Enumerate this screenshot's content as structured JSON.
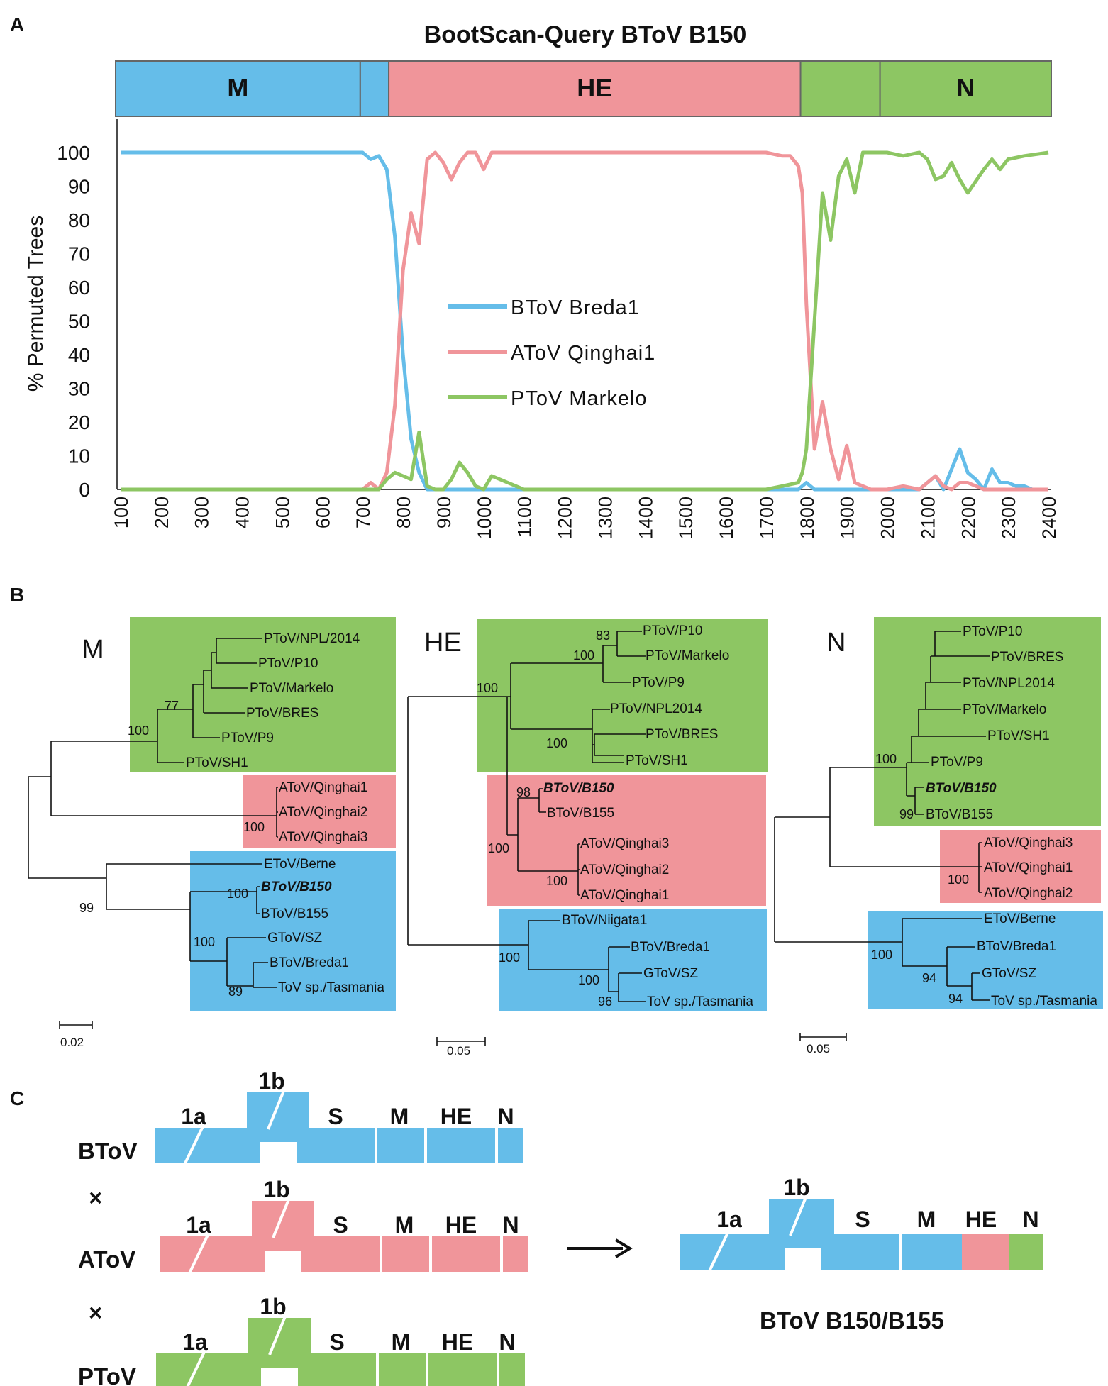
{
  "figure": {
    "panel_a_letter": "A",
    "panel_b_letter": "B",
    "panel_c_letter": "C"
  },
  "chart_data": {
    "type": "line",
    "title": "BootScan-Query BToV B150",
    "ylabel": "% Permuted Trees",
    "xlabel": "",
    "xlim": [
      100,
      2400
    ],
    "ylim": [
      0,
      100
    ],
    "xticks": [
      "100",
      "200",
      "300",
      "400",
      "500",
      "600",
      "700",
      "800",
      "900",
      "1000",
      "1100",
      "1200",
      "1300",
      "1400",
      "1500",
      "1600",
      "1700",
      "1800",
      "1900",
      "2000",
      "2100",
      "2200",
      "2300",
      "2400"
    ],
    "yticks": [
      "0",
      "10",
      "20",
      "30",
      "40",
      "50",
      "60",
      "70",
      "80",
      "90",
      "100"
    ],
    "regions": [
      {
        "label": "M",
        "start": 100,
        "end": 700,
        "color": "#65bde9"
      },
      {
        "label": "",
        "start": 700,
        "end": 770,
        "color": "#65bde9"
      },
      {
        "label": "HE",
        "start": 770,
        "end": 1780,
        "color": "#f0959a"
      },
      {
        "label": "",
        "start": 1780,
        "end": 1975,
        "color": "#8dc663"
      },
      {
        "label": "N",
        "start": 1975,
        "end": 2395,
        "color": "#8dc663"
      }
    ],
    "series": [
      {
        "name": "BToV Breda1",
        "color": "#65bde9",
        "x": [
          100,
          200,
          300,
          400,
          500,
          600,
          700,
          720,
          740,
          760,
          780,
          800,
          820,
          840,
          860,
          880,
          900,
          1000,
          1500,
          1700,
          1760,
          1780,
          1800,
          1820,
          1900,
          2000,
          2080,
          2100,
          2120,
          2140,
          2160,
          2180,
          2200,
          2220,
          2240,
          2260,
          2280,
          2300,
          2320,
          2340,
          2360,
          2400
        ],
        "y": [
          100,
          100,
          100,
          100,
          100,
          100,
          100,
          98,
          99,
          95,
          75,
          40,
          15,
          5,
          0,
          0,
          0,
          0,
          0,
          0,
          0,
          0,
          2,
          0,
          0,
          0,
          0,
          2,
          4,
          0,
          6,
          12,
          5,
          3,
          0,
          6,
          2,
          2,
          1,
          1,
          0,
          0
        ]
      },
      {
        "name": "AToV Qinghai1",
        "color": "#f0959a",
        "x": [
          100,
          600,
          700,
          720,
          740,
          760,
          780,
          790,
          800,
          820,
          840,
          860,
          880,
          900,
          920,
          940,
          960,
          980,
          1000,
          1020,
          1100,
          1500,
          1700,
          1740,
          1760,
          1780,
          1790,
          1800,
          1820,
          1840,
          1860,
          1880,
          1900,
          1920,
          1960,
          2000,
          2040,
          2080,
          2100,
          2120,
          2140,
          2160,
          2180,
          2200,
          2240,
          2400
        ],
        "y": [
          0,
          0,
          0,
          2,
          0,
          5,
          25,
          45,
          65,
          82,
          73,
          98,
          100,
          97,
          92,
          97,
          100,
          100,
          95,
          100,
          100,
          100,
          100,
          99,
          99,
          96,
          88,
          55,
          12,
          26,
          12,
          3,
          13,
          2,
          0,
          0,
          1,
          0,
          2,
          4,
          1,
          0,
          2,
          2,
          0,
          0
        ]
      },
      {
        "name": "PToV Markelo",
        "color": "#8dc663",
        "x": [
          100,
          600,
          700,
          720,
          740,
          760,
          780,
          800,
          820,
          840,
          860,
          880,
          900,
          920,
          940,
          960,
          980,
          1000,
          1020,
          1100,
          1500,
          1700,
          1740,
          1780,
          1790,
          1800,
          1820,
          1840,
          1860,
          1880,
          1900,
          1920,
          1940,
          1960,
          2000,
          2040,
          2080,
          2100,
          2120,
          2140,
          2160,
          2180,
          2200,
          2240,
          2260,
          2280,
          2300,
          2340,
          2400
        ],
        "y": [
          0,
          0,
          0,
          0,
          0,
          3,
          5,
          4,
          3,
          17,
          1,
          0,
          0,
          3,
          8,
          5,
          1,
          0,
          4,
          0,
          0,
          0,
          1,
          2,
          5,
          12,
          50,
          88,
          74,
          93,
          98,
          88,
          100,
          100,
          100,
          99,
          100,
          98,
          92,
          93,
          97,
          92,
          88,
          95,
          98,
          95,
          98,
          99,
          100
        ]
      }
    ]
  },
  "trees": {
    "m": {
      "title": "M",
      "leaves": [
        "PToV/NPL/2014",
        "PToV/P10",
        "PToV/Markelo",
        "PToV/BRES",
        "PToV/P9",
        "PToV/SH1",
        "AToV/Qinghai1",
        "AToV/Qinghai2",
        "AToV/Qinghai3",
        "EToV/Berne",
        "BToV/B150",
        "BToV/B155",
        "GToV/SZ",
        "BToV/Breda1",
        "ToV sp./Tasmania"
      ],
      "bootstrap": [
        "77",
        "100",
        "100",
        "99",
        "100",
        "100",
        "89"
      ],
      "scale": "0.02"
    },
    "he": {
      "title": "HE",
      "leaves": [
        "PToV/P10",
        "PToV/Markelo",
        "PToV/P9",
        "PToV/NPL2014",
        "PToV/BRES",
        "PToV/SH1",
        "BToV/B150",
        "BToV/B155",
        "AToV/Qinghai3",
        "AToV/Qinghai2",
        "AToV/Qinghai1",
        "BToV/Niigata1",
        "BToV/Breda1",
        "GToV/SZ",
        "ToV sp./Tasmania"
      ],
      "bootstrap": [
        "83",
        "100",
        "100",
        "100",
        "98",
        "100",
        "100",
        "100",
        "100",
        "96"
      ],
      "scale": "0.05"
    },
    "n": {
      "title": "N",
      "leaves": [
        "PToV/P10",
        "PToV/BRES",
        "PToV/NPL2014",
        "PToV/Markelo",
        "PToV/SH1",
        "PToV/P9",
        "BToV/B150",
        "BToV/B155",
        "AToV/Qinghai3",
        "AToV/Qinghai1",
        "AToV/Qinghai2",
        "EToV/Berne",
        "BToV/Breda1",
        "GToV/SZ",
        "ToV sp./Tasmania"
      ],
      "bootstrap": [
        "100",
        "99",
        "100",
        "100",
        "94",
        "94"
      ],
      "scale": "0.05"
    }
  },
  "genomes": {
    "genes": [
      "1a",
      "1b",
      "S",
      "M",
      "HE",
      "N"
    ],
    "rows": [
      {
        "name": "BToV",
        "color": "#65bde9"
      },
      {
        "name": "AToV",
        "color": "#f0959a"
      },
      {
        "name": "PToV",
        "color": "#8dc663"
      }
    ],
    "cross_symbol": "×",
    "arrow": "⟶",
    "recombinant_name": "BToV B150/B155",
    "recombinant_colors": [
      "#65bde9",
      "#f0959a",
      "#8dc663"
    ]
  }
}
